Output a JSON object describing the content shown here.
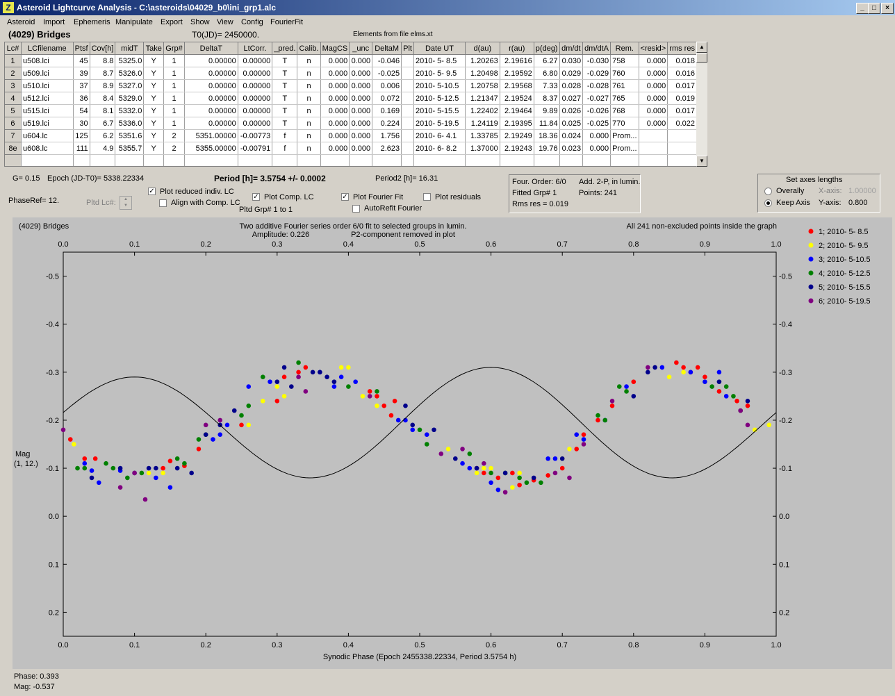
{
  "window": {
    "title": "Asteroid Lightcurve Analysis - C:\\asteroids\\04029_b0\\ini_grp1.alc",
    "icon": "Z",
    "min_label": "_",
    "max_label": "□",
    "close_label": "×"
  },
  "menu": [
    "Asteroid",
    "Import",
    "Ephemeris",
    "Manipulate",
    "Export",
    "Show",
    "View",
    "Config",
    "FourierFit"
  ],
  "header": {
    "object": "(4029) Bridges",
    "t0": "T0(JD)= 2450000.",
    "elements": "Elements from file elms.xt"
  },
  "table": {
    "columns": [
      "Lc#",
      "LCfilename",
      "Ptsf",
      "Cov[h]",
      "midT",
      "Take",
      "Grp#",
      "DeltaT",
      "LtCorr.",
      "_pred.",
      "Calib.",
      "MagCS",
      "_unc",
      "DeltaM",
      "Plt",
      "Date UT",
      "d(au)",
      "r(au)",
      "p(deg)",
      "dm/dt",
      "dm/dtA",
      "Rem.",
      "<resid>",
      "rms res"
    ],
    "rows": [
      [
        "1",
        "u508.lci",
        "45",
        "8.8",
        "5325.0",
        "Y",
        "1",
        "0.00000",
        "0.00000",
        "T",
        "n",
        "0.000",
        "0.000",
        "-0.046",
        "",
        "2010- 5- 8.5",
        "1.20263",
        "2.19616",
        "6.27",
        "0.030",
        "-0.030",
        "758",
        "0.000",
        "0.018"
      ],
      [
        "2",
        "u509.lci",
        "39",
        "8.7",
        "5326.0",
        "Y",
        "1",
        "0.00000",
        "0.00000",
        "T",
        "n",
        "0.000",
        "0.000",
        "-0.025",
        "",
        "2010- 5- 9.5",
        "1.20498",
        "2.19592",
        "6.80",
        "0.029",
        "-0.029",
        "760",
        "0.000",
        "0.016"
      ],
      [
        "3",
        "u510.lci",
        "37",
        "8.9",
        "5327.0",
        "Y",
        "1",
        "0.00000",
        "0.00000",
        "T",
        "n",
        "0.000",
        "0.000",
        "0.006",
        "",
        "2010- 5-10.5",
        "1.20758",
        "2.19568",
        "7.33",
        "0.028",
        "-0.028",
        "761",
        "0.000",
        "0.017"
      ],
      [
        "4",
        "u512.lci",
        "36",
        "8.4",
        "5329.0",
        "Y",
        "1",
        "0.00000",
        "0.00000",
        "T",
        "n",
        "0.000",
        "0.000",
        "0.072",
        "",
        "2010- 5-12.5",
        "1.21347",
        "2.19524",
        "8.37",
        "0.027",
        "-0.027",
        "765",
        "0.000",
        "0.019"
      ],
      [
        "5",
        "u515.lci",
        "54",
        "8.1",
        "5332.0",
        "Y",
        "1",
        "0.00000",
        "0.00000",
        "T",
        "n",
        "0.000",
        "0.000",
        "0.169",
        "",
        "2010- 5-15.5",
        "1.22402",
        "2.19464",
        "9.89",
        "0.026",
        "-0.026",
        "768",
        "0.000",
        "0.017"
      ],
      [
        "6",
        "u519.lci",
        "30",
        "6.7",
        "5336.0",
        "Y",
        "1",
        "0.00000",
        "0.00000",
        "T",
        "n",
        "0.000",
        "0.000",
        "0.224",
        "",
        "2010- 5-19.5",
        "1.24119",
        "2.19395",
        "11.84",
        "0.025",
        "-0.025",
        "770",
        "0.000",
        "0.022"
      ],
      [
        "7",
        "u604.lc",
        "125",
        "6.2",
        "5351.6",
        "Y",
        "2",
        "5351.00000",
        "-0.00773",
        "f",
        "n",
        "0.000",
        "0.000",
        "1.756",
        "",
        "2010- 6- 4.1",
        "1.33785",
        "2.19249",
        "18.36",
        "0.024",
        "0.000",
        "Prom...",
        "",
        ""
      ],
      [
        "8e",
        "u608.lc",
        "111",
        "4.9",
        "5355.7",
        "Y",
        "2",
        "5355.00000",
        "-0.00791",
        "f",
        "n",
        "0.000",
        "0.000",
        "2.623",
        "",
        "2010- 6- 8.2",
        "1.37000",
        "2.19243",
        "19.76",
        "0.023",
        "0.000",
        "Prom...",
        "",
        ""
      ],
      [
        "",
        "",
        "",
        "",
        "",
        "",
        "",
        "",
        "",
        "",
        "",
        "",
        "",
        "",
        "",
        "",
        "",
        "",
        "",
        "",
        "",
        "",
        "",
        ""
      ]
    ]
  },
  "info": {
    "g": "G= 0.15",
    "epoch": "Epoch (JD-T0)= 5338.22334",
    "period": "Period [h]= 3.5754 +/- 0.0002",
    "period2": "Period2 [h]= 16.31",
    "phaseref": "PhaseRef= 12.",
    "pltd_lc": "Pltd Lc#:",
    "pltd_grp": "Pltd Grp#  1  to  1",
    "cb_reduced": "Plot reduced indiv. LC",
    "cb_align": "Align with Comp. LC",
    "cb_comp": "Plot Comp. LC",
    "cb_fourier": "Plot Fourier Fit",
    "cb_autorefit": "AutoRefit Fourier",
    "cb_resid": "Plot residuals",
    "four_order": "Four. Order:  6/0",
    "add2p": "Add. 2-P, in lumin.",
    "fitted_grp": "Fitted Grp# 1",
    "points": "Points: 241",
    "rms": "Rms res     = 0.019"
  },
  "axes_box": {
    "title": "Set axes lengths",
    "overall": "Overally",
    "keep": "Keep Axis",
    "xaxis_label": "X-axis:",
    "xaxis_val": "1.00000",
    "yaxis_label": "Y-axis:",
    "yaxis_val": "0.800"
  },
  "plot": {
    "title_left": "(4029) Bridges",
    "title_center1": "Two additive Fourier series order 6/0 fit to selected groups in lumin.",
    "title_center2": "Amplitude: 0.226",
    "title_center3": "P2-component removed in plot",
    "title_right": "All 241 non-excluded points inside the graph",
    "ylabel1": "Mag",
    "ylabel2": "(1, 12.)",
    "xlabel": "Synodic Phase (Epoch 2455338.22334, Period 3.5754 h)",
    "bg": "#c0c0c0"
  },
  "chart_data": {
    "type": "scatter",
    "xlim": [
      0.0,
      1.0
    ],
    "ylim": [
      -0.55,
      0.25
    ],
    "x_ticks": [
      "0.0",
      "0.1",
      "0.2",
      "0.3",
      "0.4",
      "0.5",
      "0.6",
      "0.7",
      "0.8",
      "0.9",
      "1.0"
    ],
    "y_ticks": [
      "-0.5",
      "-0.4",
      "-0.3",
      "-0.2",
      "-0.1",
      "0.0",
      "0.1",
      "0.2"
    ],
    "legend_position": "right",
    "series": [
      {
        "name": "1; 2010- 5- 8.5",
        "color": "#ff0000",
        "points": [
          [
            0.01,
            -0.16
          ],
          [
            0.03,
            -0.12
          ],
          [
            0.045,
            -0.12
          ],
          [
            0.14,
            -0.1
          ],
          [
            0.15,
            -0.115
          ],
          [
            0.17,
            -0.105
          ],
          [
            0.19,
            -0.14
          ],
          [
            0.25,
            -0.19
          ],
          [
            0.3,
            -0.24
          ],
          [
            0.31,
            -0.29
          ],
          [
            0.33,
            -0.3
          ],
          [
            0.34,
            -0.31
          ],
          [
            0.43,
            -0.26
          ],
          [
            0.44,
            -0.25
          ],
          [
            0.45,
            -0.23
          ],
          [
            0.46,
            -0.21
          ],
          [
            0.465,
            -0.24
          ],
          [
            0.58,
            -0.1
          ],
          [
            0.59,
            -0.09
          ],
          [
            0.61,
            -0.08
          ],
          [
            0.63,
            -0.09
          ],
          [
            0.64,
            -0.065
          ],
          [
            0.66,
            -0.075
          ],
          [
            0.68,
            -0.085
          ],
          [
            0.7,
            -0.1
          ],
          [
            0.72,
            -0.14
          ],
          [
            0.73,
            -0.17
          ],
          [
            0.75,
            -0.2
          ],
          [
            0.77,
            -0.23
          ],
          [
            0.8,
            -0.28
          ],
          [
            0.86,
            -0.32
          ],
          [
            0.87,
            -0.31
          ],
          [
            0.88,
            -0.3
          ],
          [
            0.89,
            -0.31
          ],
          [
            0.9,
            -0.29
          ],
          [
            0.92,
            -0.26
          ],
          [
            0.945,
            -0.24
          ],
          [
            0.96,
            -0.23
          ]
        ]
      },
      {
        "name": "2; 2010- 5- 9.5",
        "color": "#ffff00",
        "points": [
          [
            0.015,
            -0.15
          ],
          [
            0.12,
            -0.09
          ],
          [
            0.14,
            -0.09
          ],
          [
            0.26,
            -0.19
          ],
          [
            0.28,
            -0.24
          ],
          [
            0.3,
            -0.27
          ],
          [
            0.31,
            -0.25
          ],
          [
            0.39,
            -0.31
          ],
          [
            0.4,
            -0.31
          ],
          [
            0.42,
            -0.25
          ],
          [
            0.44,
            -0.23
          ],
          [
            0.54,
            -0.14
          ],
          [
            0.58,
            -0.09
          ],
          [
            0.59,
            -0.1
          ],
          [
            0.6,
            -0.1
          ],
          [
            0.63,
            -0.06
          ],
          [
            0.64,
            -0.09
          ],
          [
            0.7,
            -0.12
          ],
          [
            0.71,
            -0.14
          ],
          [
            0.85,
            -0.29
          ],
          [
            0.87,
            -0.3
          ],
          [
            0.9,
            -0.28
          ],
          [
            0.97,
            -0.18
          ],
          [
            0.99,
            -0.19
          ]
        ]
      },
      {
        "name": "3; 2010- 5-10.5",
        "color": "#0000ff",
        "points": [
          [
            0.03,
            -0.11
          ],
          [
            0.04,
            -0.095
          ],
          [
            0.05,
            -0.07
          ],
          [
            0.08,
            -0.095
          ],
          [
            0.13,
            -0.08
          ],
          [
            0.15,
            -0.06
          ],
          [
            0.21,
            -0.16
          ],
          [
            0.22,
            -0.17
          ],
          [
            0.23,
            -0.19
          ],
          [
            0.26,
            -0.27
          ],
          [
            0.29,
            -0.28
          ],
          [
            0.36,
            -0.3
          ],
          [
            0.38,
            -0.27
          ],
          [
            0.39,
            -0.29
          ],
          [
            0.41,
            -0.28
          ],
          [
            0.47,
            -0.2
          ],
          [
            0.48,
            -0.2
          ],
          [
            0.49,
            -0.18
          ],
          [
            0.51,
            -0.17
          ],
          [
            0.56,
            -0.11
          ],
          [
            0.57,
            -0.1
          ],
          [
            0.6,
            -0.07
          ],
          [
            0.61,
            -0.055
          ],
          [
            0.68,
            -0.12
          ],
          [
            0.69,
            -0.12
          ],
          [
            0.72,
            -0.17
          ],
          [
            0.73,
            -0.16
          ],
          [
            0.76,
            -0.2
          ],
          [
            0.79,
            -0.27
          ],
          [
            0.84,
            -0.31
          ],
          [
            0.88,
            -0.3
          ],
          [
            0.9,
            -0.28
          ],
          [
            0.92,
            -0.3
          ],
          [
            0.93,
            -0.25
          ]
        ]
      },
      {
        "name": "4; 2010- 5-12.5",
        "color": "#008000",
        "points": [
          [
            0.02,
            -0.1
          ],
          [
            0.03,
            -0.1
          ],
          [
            0.06,
            -0.11
          ],
          [
            0.07,
            -0.1
          ],
          [
            0.09,
            -0.08
          ],
          [
            0.11,
            -0.09
          ],
          [
            0.16,
            -0.12
          ],
          [
            0.17,
            -0.11
          ],
          [
            0.19,
            -0.16
          ],
          [
            0.2,
            -0.17
          ],
          [
            0.25,
            -0.21
          ],
          [
            0.26,
            -0.23
          ],
          [
            0.28,
            -0.29
          ],
          [
            0.33,
            -0.32
          ],
          [
            0.4,
            -0.27
          ],
          [
            0.44,
            -0.26
          ],
          [
            0.5,
            -0.18
          ],
          [
            0.51,
            -0.15
          ],
          [
            0.57,
            -0.13
          ],
          [
            0.6,
            -0.09
          ],
          [
            0.62,
            -0.09
          ],
          [
            0.64,
            -0.08
          ],
          [
            0.65,
            -0.07
          ],
          [
            0.67,
            -0.07
          ],
          [
            0.75,
            -0.21
          ],
          [
            0.76,
            -0.2
          ],
          [
            0.78,
            -0.27
          ],
          [
            0.79,
            -0.26
          ],
          [
            0.91,
            -0.27
          ],
          [
            0.93,
            -0.27
          ],
          [
            0.94,
            -0.25
          ],
          [
            0.95,
            -0.22
          ]
        ]
      },
      {
        "name": "5; 2010- 5-15.5",
        "color": "#00008b",
        "points": [
          [
            0.04,
            -0.08
          ],
          [
            0.08,
            -0.1
          ],
          [
            0.1,
            -0.09
          ],
          [
            0.12,
            -0.1
          ],
          [
            0.13,
            -0.1
          ],
          [
            0.16,
            -0.1
          ],
          [
            0.18,
            -0.09
          ],
          [
            0.2,
            -0.17
          ],
          [
            0.22,
            -0.19
          ],
          [
            0.24,
            -0.22
          ],
          [
            0.3,
            -0.28
          ],
          [
            0.31,
            -0.31
          ],
          [
            0.32,
            -0.27
          ],
          [
            0.35,
            -0.3
          ],
          [
            0.36,
            -0.3
          ],
          [
            0.37,
            -0.29
          ],
          [
            0.38,
            -0.28
          ],
          [
            0.48,
            -0.23
          ],
          [
            0.49,
            -0.19
          ],
          [
            0.52,
            -0.18
          ],
          [
            0.55,
            -0.12
          ],
          [
            0.58,
            -0.1
          ],
          [
            0.62,
            -0.09
          ],
          [
            0.66,
            -0.08
          ],
          [
            0.7,
            -0.12
          ],
          [
            0.8,
            -0.25
          ],
          [
            0.82,
            -0.3
          ],
          [
            0.83,
            -0.31
          ],
          [
            0.92,
            -0.28
          ],
          [
            0.96,
            -0.24
          ]
        ]
      },
      {
        "name": "6; 2010- 5-19.5",
        "color": "#800080",
        "points": [
          [
            0.0,
            -0.18
          ],
          [
            0.08,
            -0.06
          ],
          [
            0.1,
            -0.09
          ],
          [
            0.115,
            -0.035
          ],
          [
            0.2,
            -0.19
          ],
          [
            0.22,
            -0.2
          ],
          [
            0.33,
            -0.29
          ],
          [
            0.34,
            -0.26
          ],
          [
            0.43,
            -0.25
          ],
          [
            0.53,
            -0.13
          ],
          [
            0.56,
            -0.14
          ],
          [
            0.59,
            -0.11
          ],
          [
            0.62,
            -0.05
          ],
          [
            0.69,
            -0.09
          ],
          [
            0.71,
            -0.08
          ],
          [
            0.73,
            -0.15
          ],
          [
            0.77,
            -0.24
          ],
          [
            0.82,
            -0.31
          ],
          [
            0.95,
            -0.22
          ],
          [
            0.96,
            -0.19
          ]
        ]
      }
    ]
  },
  "status": {
    "phase": "Phase:  0.393",
    "mag": "Mag:    -0.537"
  }
}
